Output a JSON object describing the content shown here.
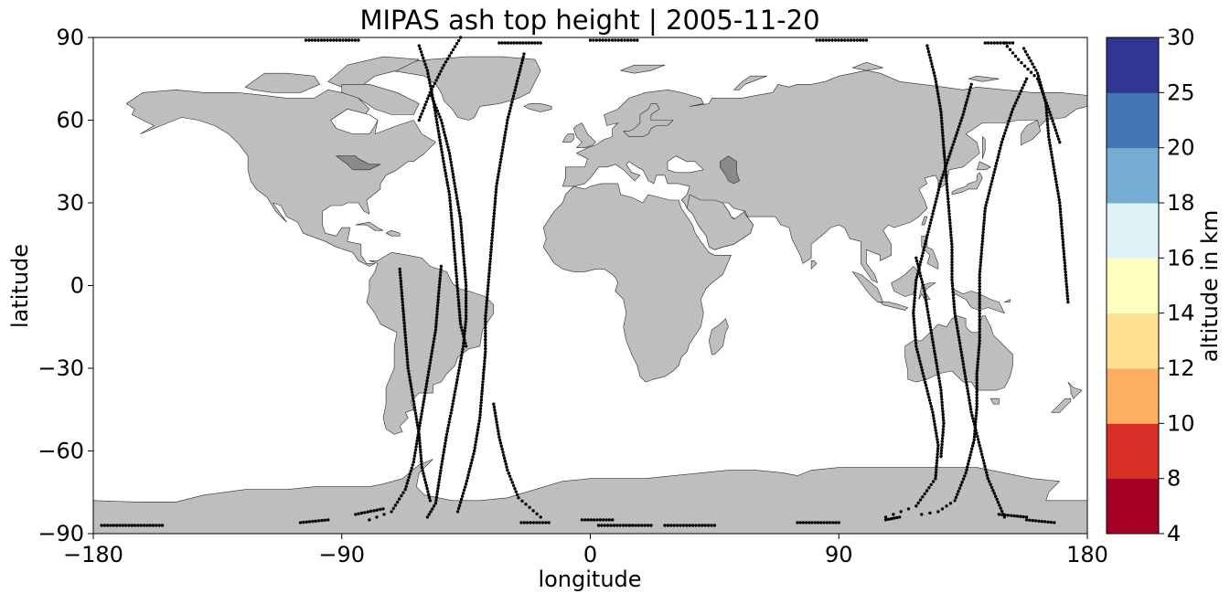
{
  "chart_data": {
    "type": "scatter",
    "title": "MIPAS ash top height | 2005-11-20",
    "xlabel": "longitude",
    "ylabel": "latitude",
    "xlim": [
      -180,
      180
    ],
    "ylim": [
      -90,
      90
    ],
    "xticks": [
      -180,
      -90,
      0,
      90,
      180
    ],
    "xtick_labels": [
      "−180",
      "−90",
      "0",
      "90",
      "180"
    ],
    "yticks": [
      90,
      60,
      30,
      0,
      -30,
      -60,
      -90
    ],
    "ytick_labels": [
      "90",
      "60",
      "30",
      "0",
      "−30",
      "−60",
      "−90"
    ],
    "grid": false,
    "basemap": "world land masses (gray)",
    "colorbar": {
      "label": "altitude in km",
      "bounds": [
        4,
        8,
        10,
        12,
        14,
        16,
        18,
        20,
        25,
        30
      ],
      "tick_labels": [
        "4",
        "8",
        "10",
        "12",
        "14",
        "16",
        "18",
        "20",
        "25",
        "30"
      ],
      "colors": [
        "#a50026",
        "#d73027",
        "#f46d43",
        "#fdae61",
        "#fee090",
        "#ffffbf",
        "#e0f3f8",
        "#abd9e9",
        "#74add1",
        "#4575b4",
        "#313695"
      ]
    },
    "series": [
      {
        "marker_color": "#000000",
        "tracks": [
          [
            [
              -62,
              87
            ],
            [
              -59,
              78
            ],
            [
              -57,
              68
            ],
            [
              -55,
              56
            ],
            [
              -53,
              44
            ],
            [
              -51,
              33
            ],
            [
              -50,
              22
            ],
            [
              -49,
              10
            ],
            [
              -48,
              -2
            ],
            [
              -47,
              -14
            ],
            [
              -45,
              -22
            ]
          ],
          [
            [
              -58,
              70
            ],
            [
              -54,
              60
            ],
            [
              -51,
              48
            ],
            [
              -49,
              36
            ],
            [
              -47,
              24
            ],
            [
              -46,
              12
            ],
            [
              -45,
              0
            ],
            [
              -45,
              -12
            ],
            [
              -46,
              -22
            ],
            [
              -48,
              -33
            ],
            [
              -50,
              -44
            ],
            [
              -52,
              -54
            ],
            [
              -54,
              -66
            ],
            [
              -56,
              -79
            ],
            [
              -59,
              -84
            ]
          ],
          [
            [
              -24,
              84
            ],
            [
              -27,
              72
            ],
            [
              -30,
              60
            ],
            [
              -32,
              48
            ],
            [
              -34,
              36
            ],
            [
              -35,
              24
            ],
            [
              -36,
              12
            ],
            [
              -37,
              0
            ],
            [
              -38,
              -12
            ],
            [
              -38,
              -24
            ],
            [
              -39,
              -36
            ],
            [
              -40,
              -48
            ],
            [
              -42,
              -60
            ],
            [
              -45,
              -72
            ],
            [
              -48,
              -82
            ]
          ],
          [
            [
              -47,
              90
            ],
            [
              -53,
              80
            ],
            [
              -58,
              70
            ],
            [
              -62,
              60
            ]
          ],
          [
            [
              -35,
              -43
            ],
            [
              -33,
              -55
            ],
            [
              -30,
              -67
            ],
            [
              -26,
              -77
            ],
            [
              -18,
              -84
            ]
          ],
          [
            [
              -69,
              6
            ],
            [
              -68,
              -6
            ],
            [
              -67,
              -18
            ],
            [
              -66,
              -30
            ],
            [
              -64,
              -42
            ],
            [
              -62,
              -54
            ],
            [
              -61,
              -66
            ],
            [
              -58,
              -78
            ]
          ],
          [
            [
              -54,
              7
            ],
            [
              -55,
              -4
            ],
            [
              -56,
              -16
            ],
            [
              -58,
              -28
            ],
            [
              -60,
              -40
            ],
            [
              -62,
              -52
            ],
            [
              -64,
              -64
            ],
            [
              -67,
              -74
            ],
            [
              -72,
              -82
            ],
            [
              -80,
              -85
            ]
          ],
          [
            [
              122,
              87
            ],
            [
              125,
              75
            ],
            [
              127,
              63
            ],
            [
              128,
              50
            ],
            [
              129,
              38
            ],
            [
              130,
              26
            ],
            [
              131,
              14
            ],
            [
              131,
              2
            ],
            [
              132,
              -10
            ],
            [
              134,
              -22
            ],
            [
              136,
              -34
            ],
            [
              138,
              -46
            ],
            [
              141,
              -58
            ],
            [
              144,
              -70
            ],
            [
              150,
              -84
            ]
          ],
          [
            [
              138,
              73
            ],
            [
              135,
              62
            ],
            [
              131,
              50
            ],
            [
              127,
              38
            ],
            [
              124,
              26
            ],
            [
              121,
              14
            ],
            [
              118,
              2
            ],
            [
              117,
              -10
            ],
            [
              118,
              -22
            ],
            [
              121,
              -34
            ],
            [
              124,
              -46
            ],
            [
              126,
              -58
            ],
            [
              125,
              -70
            ],
            [
              118,
              -80
            ],
            [
              107,
              -84
            ]
          ],
          [
            [
              158,
              75
            ],
            [
              153,
              64
            ],
            [
              149,
              52
            ],
            [
              146,
              40
            ],
            [
              143,
              28
            ],
            [
              142,
              16
            ],
            [
              141,
              4
            ],
            [
              141,
              -8
            ],
            [
              141,
              -20
            ],
            [
              140,
              -32
            ],
            [
              140,
              -44
            ],
            [
              139,
              -56
            ],
            [
              136,
              -68
            ],
            [
              132,
              -78
            ],
            [
              126,
              -82
            ],
            [
              120,
              -83
            ]
          ],
          [
            [
              157,
              86
            ],
            [
              162,
              77
            ],
            [
              165,
              66
            ],
            [
              166,
              54
            ],
            [
              168,
              42
            ],
            [
              170,
              30
            ],
            [
              171,
              18
            ],
            [
              172,
              6
            ],
            [
              173,
              -6
            ]
          ],
          [
            [
              170,
              52
            ],
            [
              166,
              64
            ],
            [
              162,
              75
            ],
            [
              155,
              82
            ],
            [
              150,
              88
            ]
          ],
          [
            [
              118,
              10
            ],
            [
              121,
              -2
            ],
            [
              123,
              -14
            ],
            [
              125,
              -26
            ],
            [
              127,
              -38
            ],
            [
              128,
              -50
            ],
            [
              127,
              -62
            ]
          ]
        ],
        "polar_segments": [
          [
            [
              -177,
              -87
            ],
            [
              -155,
              -87
            ]
          ],
          [
            [
              -105,
              -86
            ],
            [
              -95,
              -85
            ]
          ],
          [
            [
              -85,
              -83
            ],
            [
              -75,
              -81
            ]
          ],
          [
            [
              -25,
              -86
            ],
            [
              -15,
              -86
            ]
          ],
          [
            [
              -3,
              -85
            ],
            [
              8,
              -85
            ]
          ],
          [
            [
              3,
              -87
            ],
            [
              22,
              -87
            ]
          ],
          [
            [
              27,
              -87
            ],
            [
              45,
              -87
            ]
          ],
          [
            [
              75,
              -86
            ],
            [
              90,
              -86
            ]
          ],
          [
            [
              107,
              -85
            ],
            [
              112,
              -84
            ]
          ],
          [
            [
              148,
              -83
            ],
            [
              158,
              -84
            ]
          ],
          [
            [
              158,
              -85
            ],
            [
              168,
              -86
            ]
          ],
          [
            [
              -103,
              89
            ],
            [
              -84,
              89
            ]
          ],
          [
            [
              -33,
              88
            ],
            [
              -18,
              88
            ]
          ],
          [
            [
              0,
              89
            ],
            [
              17,
              89
            ]
          ],
          [
            [
              82,
              89
            ],
            [
              100,
              89
            ]
          ],
          [
            [
              143,
              88
            ],
            [
              153,
              88
            ]
          ]
        ]
      }
    ]
  }
}
